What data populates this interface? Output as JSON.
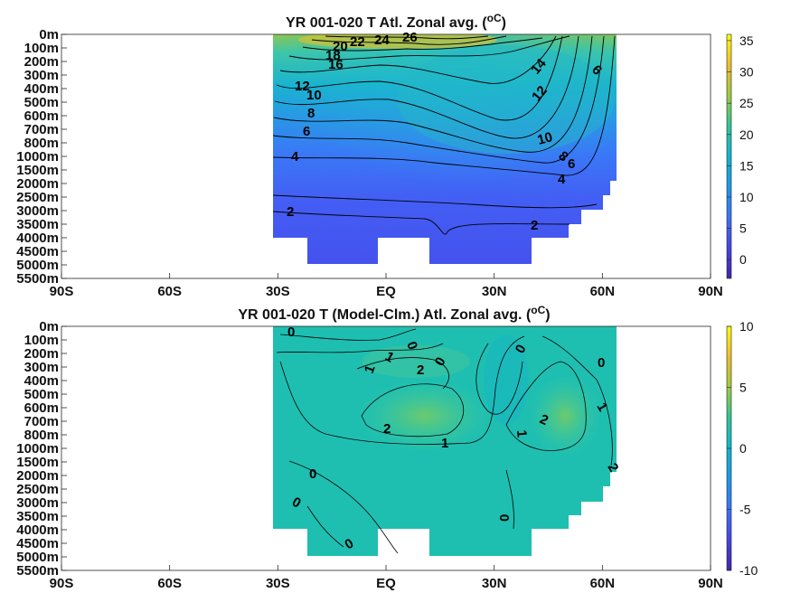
{
  "chart_data": [
    {
      "type": "heatmap",
      "title": "YR 001-020 T Atl. Zonal avg. (",
      "title_units": "oC",
      "title_tail": ")",
      "x_ticks": [
        "90S",
        "60S",
        "30S",
        "EQ",
        "30N",
        "60N",
        "90N"
      ],
      "x_values": [
        -90,
        -60,
        -30,
        0,
        30,
        60,
        90
      ],
      "y_ticks": [
        "0m",
        "100m",
        "200m",
        "300m",
        "400m",
        "500m",
        "600m",
        "700m",
        "800m",
        "1000m",
        "1500m",
        "2000m",
        "2500m",
        "3000m",
        "3500m",
        "4000m",
        "4500m",
        "5000m",
        "5500m"
      ],
      "colorbar": {
        "ticks": [
          "35",
          "30",
          "25",
          "20",
          "15",
          "10",
          "5",
          "0"
        ],
        "values": [
          35,
          30,
          25,
          20,
          15,
          10,
          5,
          0
        ],
        "range": [
          -3,
          36
        ]
      },
      "contour_labels": [
        "26",
        "24",
        "22",
        "20",
        "18",
        "16",
        "14",
        "12",
        "12",
        "10",
        "10",
        "8",
        "8",
        "6",
        "6",
        "6",
        "4",
        "4",
        "2",
        "2"
      ]
    },
    {
      "type": "heatmap",
      "title": "YR 001-020 T (Model-Clm.) Atl. Zonal avg. (",
      "title_units": "oC",
      "title_tail": ")",
      "x_ticks": [
        "90S",
        "60S",
        "30S",
        "EQ",
        "30N",
        "60N",
        "90N"
      ],
      "x_values": [
        -90,
        -60,
        -30,
        0,
        30,
        60,
        90
      ],
      "y_ticks": [
        "0m",
        "100m",
        "200m",
        "300m",
        "400m",
        "500m",
        "600m",
        "700m",
        "800m",
        "1000m",
        "1500m",
        "2000m",
        "2500m",
        "3000m",
        "3500m",
        "4000m",
        "4500m",
        "5000m",
        "5500m"
      ],
      "colorbar": {
        "ticks": [
          "10",
          "5",
          "0",
          "-5",
          "-10"
        ],
        "values": [
          10,
          5,
          0,
          -5,
          -10
        ],
        "range": [
          -10,
          10
        ]
      },
      "contour_labels": [
        "0",
        "0",
        "1",
        "1",
        "2",
        "0",
        "0",
        "0",
        "2",
        "2",
        "1",
        "1",
        "1",
        "2",
        "0",
        "0",
        "0",
        "0"
      ]
    }
  ]
}
